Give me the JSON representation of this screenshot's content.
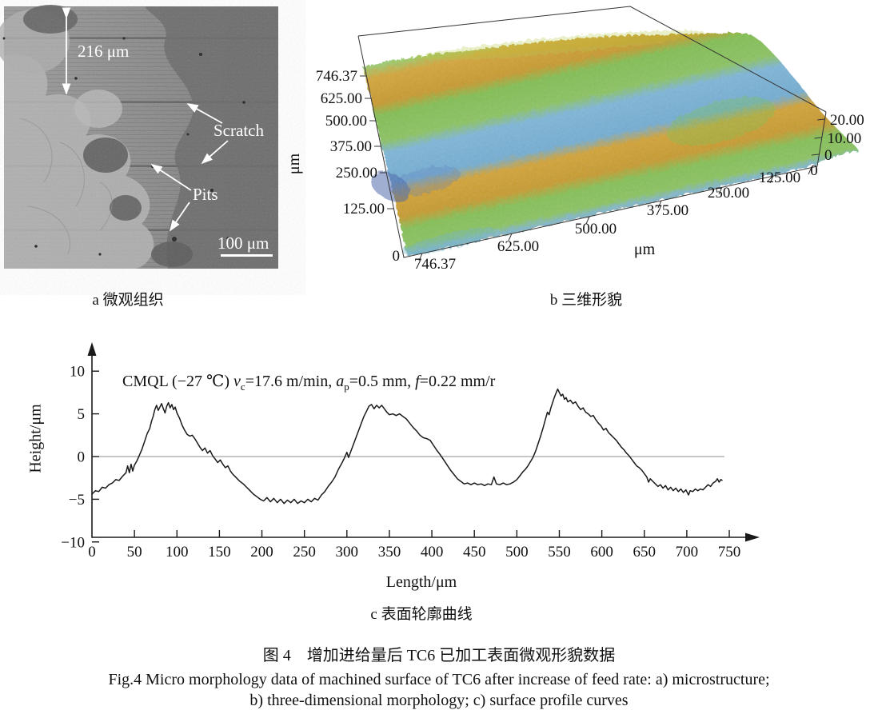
{
  "page": {
    "background": "#ffffff"
  },
  "figure": {
    "panel_a": {
      "caption": "a 微观组织",
      "thickness_label": "216 μm",
      "scratch_label": "Scratch",
      "pits_label": "Pits",
      "scalebar_label": "100 μm"
    },
    "panel_b": {
      "caption": "b 三维形貌",
      "length_axis_ticks": [
        "746.37",
        "625.00",
        "500.00",
        "375.00",
        "250.00",
        "125.00"
      ],
      "length_axis_origin": "0",
      "length_axis_unit": "μm",
      "width_axis_ticks": [
        "746.37",
        "625.00",
        "500.00",
        "375.00",
        "250.00",
        "125.00",
        "0"
      ],
      "width_axis_unit": "μm",
      "height_axis_ticks": [
        "20.00",
        "10.00",
        "0"
      ],
      "colors": {
        "blue": "#7db6d8",
        "green": "#83bf55",
        "orange": "#d2a338",
        "teal": "#8fc7d6",
        "navy": "#3f5da6"
      }
    },
    "panel_c": {
      "caption": "c 表面轮廓曲线",
      "annotation": {
        "prefix": "CMQL (−27 ℃) ",
        "v_sym": "v",
        "v_sub": "c",
        "v_rest": "=17.6 m/min, ",
        "a_sym": "a",
        "a_sub": "p",
        "a_rest": "=0.5 mm, ",
        "f_sym": "f",
        "f_rest": "=0.22 mm/r"
      }
    },
    "caption_zh": "图 4　增加进给量后 TC6 已加工表面微观形貌数据",
    "caption_en_line1": "Fig.4 Micro morphology data of machined surface of TC6 after increase of feed rate: a) microstructure;",
    "caption_en_line2": "b) three-dimensional morphology; c) surface profile curves"
  },
  "chart_data": {
    "type": "line",
    "title": "CMQL (−27 ℃) vc=17.6 m/min, ap=0.5 mm, f=0.22 mm/r",
    "xlabel": "Length/μm",
    "ylabel": "Height/μm",
    "xlim": [
      0,
      760
    ],
    "ylim": [
      -10,
      12
    ],
    "grid": "zero-line-only",
    "legend_position": "none",
    "xtick_values": [
      0,
      50,
      100,
      150,
      200,
      250,
      300,
      350,
      400,
      450,
      500,
      550,
      600,
      650,
      700,
      750
    ],
    "xtick_labels": [
      "0",
      "50",
      "100",
      "150",
      "200",
      "250",
      "300",
      "350",
      "400",
      "450",
      "500",
      "550",
      "600",
      "650",
      "700",
      "750"
    ],
    "ytick_values": [
      10,
      5,
      0,
      -5,
      -10
    ],
    "ytick_labels": [
      "10",
      "5",
      "0",
      "−5",
      "−10"
    ],
    "series": [
      {
        "name": "surface profile",
        "points": [
          [
            0,
            -4.4
          ],
          [
            4,
            -4.0
          ],
          [
            8,
            -4.1
          ],
          [
            12,
            -3.6
          ],
          [
            16,
            -3.7
          ],
          [
            20,
            -3.3
          ],
          [
            24,
            -3.1
          ],
          [
            28,
            -2.7
          ],
          [
            32,
            -2.8
          ],
          [
            36,
            -2.3
          ],
          [
            40,
            -1.9
          ],
          [
            42,
            -1.1
          ],
          [
            44,
            -1.9
          ],
          [
            46,
            -0.9
          ],
          [
            48,
            -1.7
          ],
          [
            50,
            -1.0
          ],
          [
            53,
            -0.5
          ],
          [
            56,
            0.2
          ],
          [
            59,
            0.9
          ],
          [
            62,
            1.8
          ],
          [
            65,
            2.7
          ],
          [
            68,
            3.3
          ],
          [
            70,
            4.1
          ],
          [
            72,
            4.7
          ],
          [
            74,
            5.5
          ],
          [
            76,
            6.0
          ],
          [
            78,
            5.4
          ],
          [
            80,
            5.8
          ],
          [
            82,
            6.2
          ],
          [
            84,
            5.6
          ],
          [
            86,
            5.1
          ],
          [
            88,
            5.9
          ],
          [
            90,
            6.3
          ],
          [
            92,
            5.7
          ],
          [
            94,
            6.1
          ],
          [
            96,
            5.5
          ],
          [
            98,
            5.8
          ],
          [
            100,
            5.1
          ],
          [
            103,
            4.5
          ],
          [
            106,
            3.7
          ],
          [
            109,
            3.1
          ],
          [
            112,
            2.6
          ],
          [
            115,
            2.4
          ],
          [
            118,
            2.5
          ],
          [
            121,
            2.1
          ],
          [
            124,
            1.6
          ],
          [
            127,
            1.1
          ],
          [
            130,
            0.7
          ],
          [
            133,
            1.0
          ],
          [
            136,
            0.4
          ],
          [
            139,
            0.7
          ],
          [
            142,
            0.1
          ],
          [
            145,
            -0.3
          ],
          [
            148,
            -0.7
          ],
          [
            151,
            -0.4
          ],
          [
            154,
            -0.9
          ],
          [
            157,
            -1.3
          ],
          [
            160,
            -1.1
          ],
          [
            163,
            -1.7
          ],
          [
            166,
            -2.1
          ],
          [
            170,
            -2.5
          ],
          [
            174,
            -2.9
          ],
          [
            178,
            -3.2
          ],
          [
            182,
            -3.6
          ],
          [
            186,
            -4.0
          ],
          [
            190,
            -4.4
          ],
          [
            194,
            -4.7
          ],
          [
            198,
            -5.0
          ],
          [
            202,
            -5.2
          ],
          [
            206,
            -4.8
          ],
          [
            210,
            -5.3
          ],
          [
            214,
            -4.9
          ],
          [
            218,
            -5.4
          ],
          [
            222,
            -5.0
          ],
          [
            226,
            -5.5
          ],
          [
            230,
            -5.1
          ],
          [
            234,
            -5.4
          ],
          [
            238,
            -5.0
          ],
          [
            242,
            -5.5
          ],
          [
            246,
            -5.2
          ],
          [
            250,
            -5.4
          ],
          [
            254,
            -5.0
          ],
          [
            258,
            -5.3
          ],
          [
            262,
            -4.9
          ],
          [
            266,
            -5.1
          ],
          [
            270,
            -4.5
          ],
          [
            274,
            -4.1
          ],
          [
            278,
            -3.5
          ],
          [
            282,
            -3.0
          ],
          [
            286,
            -2.4
          ],
          [
            290,
            -1.5
          ],
          [
            294,
            -0.8
          ],
          [
            297,
            -0.2
          ],
          [
            300,
            0.5
          ],
          [
            302,
            -0.1
          ],
          [
            305,
            0.7
          ],
          [
            308,
            1.5
          ],
          [
            311,
            2.3
          ],
          [
            314,
            3.1
          ],
          [
            317,
            3.9
          ],
          [
            320,
            4.7
          ],
          [
            323,
            5.3
          ],
          [
            326,
            5.9
          ],
          [
            329,
            6.1
          ],
          [
            332,
            5.6
          ],
          [
            335,
            6.0
          ],
          [
            338,
            5.7
          ],
          [
            341,
            6.0
          ],
          [
            344,
            5.6
          ],
          [
            347,
            5.2
          ],
          [
            350,
            4.9
          ],
          [
            354,
            5.0
          ],
          [
            358,
            4.8
          ],
          [
            362,
            5.0
          ],
          [
            366,
            4.7
          ],
          [
            370,
            4.4
          ],
          [
            374,
            3.9
          ],
          [
            378,
            3.4
          ],
          [
            382,
            3.0
          ],
          [
            386,
            2.5
          ],
          [
            390,
            2.2
          ],
          [
            394,
            2.1
          ],
          [
            398,
            1.9
          ],
          [
            402,
            1.3
          ],
          [
            406,
            0.7
          ],
          [
            410,
            0.2
          ],
          [
            414,
            -0.4
          ],
          [
            418,
            -1.0
          ],
          [
            422,
            -1.6
          ],
          [
            426,
            -2.1
          ],
          [
            430,
            -2.6
          ],
          [
            434,
            -2.9
          ],
          [
            438,
            -3.2
          ],
          [
            442,
            -3.1
          ],
          [
            446,
            -3.3
          ],
          [
            450,
            -3.1
          ],
          [
            454,
            -3.3
          ],
          [
            458,
            -3.2
          ],
          [
            462,
            -3.4
          ],
          [
            466,
            -3.2
          ],
          [
            470,
            -3.3
          ],
          [
            473,
            -2.4
          ],
          [
            476,
            -3.2
          ],
          [
            480,
            -3.3
          ],
          [
            484,
            -3.1
          ],
          [
            488,
            -3.3
          ],
          [
            492,
            -3.2
          ],
          [
            496,
            -3.0
          ],
          [
            500,
            -2.7
          ],
          [
            504,
            -2.2
          ],
          [
            507,
            -1.8
          ],
          [
            510,
            -1.5
          ],
          [
            513,
            -1.1
          ],
          [
            516,
            -0.6
          ],
          [
            519,
            -0.1
          ],
          [
            522,
            0.6
          ],
          [
            525,
            1.5
          ],
          [
            528,
            2.4
          ],
          [
            531,
            3.4
          ],
          [
            534,
            4.5
          ],
          [
            536,
            5.2
          ],
          [
            538,
            4.9
          ],
          [
            540,
            5.7
          ],
          [
            542,
            6.3
          ],
          [
            544,
            6.9
          ],
          [
            546,
            7.4
          ],
          [
            548,
            7.9
          ],
          [
            550,
            7.5
          ],
          [
            552,
            7.1
          ],
          [
            554,
            7.3
          ],
          [
            556,
            6.7
          ],
          [
            558,
            6.9
          ],
          [
            560,
            6.4
          ],
          [
            563,
            6.6
          ],
          [
            566,
            6.2
          ],
          [
            569,
            6.4
          ],
          [
            572,
            5.9
          ],
          [
            575,
            5.5
          ],
          [
            578,
            5.7
          ],
          [
            581,
            5.2
          ],
          [
            584,
            5.0
          ],
          [
            587,
            4.7
          ],
          [
            590,
            4.8
          ],
          [
            593,
            4.3
          ],
          [
            596,
            3.9
          ],
          [
            599,
            3.6
          ],
          [
            602,
            3.1
          ],
          [
            605,
            3.3
          ],
          [
            608,
            2.8
          ],
          [
            611,
            2.5
          ],
          [
            614,
            2.2
          ],
          [
            617,
            1.9
          ],
          [
            620,
            1.5
          ],
          [
            623,
            1.1
          ],
          [
            626,
            0.8
          ],
          [
            629,
            0.4
          ],
          [
            632,
            0.1
          ],
          [
            635,
            -0.3
          ],
          [
            638,
            -0.7
          ],
          [
            641,
            -1.1
          ],
          [
            644,
            -1.3
          ],
          [
            647,
            -1.6
          ],
          [
            650,
            -2.0
          ],
          [
            653,
            -2.4
          ],
          [
            655,
            -3.0
          ],
          [
            657,
            -2.6
          ],
          [
            660,
            -2.9
          ],
          [
            663,
            -3.2
          ],
          [
            666,
            -3.5
          ],
          [
            669,
            -3.3
          ],
          [
            672,
            -3.7
          ],
          [
            675,
            -3.4
          ],
          [
            678,
            -3.9
          ],
          [
            681,
            -3.6
          ],
          [
            684,
            -4.0
          ],
          [
            687,
            -3.7
          ],
          [
            690,
            -4.1
          ],
          [
            693,
            -3.8
          ],
          [
            696,
            -4.2
          ],
          [
            699,
            -3.9
          ],
          [
            702,
            -4.5
          ],
          [
            704,
            -4.0
          ],
          [
            707,
            -4.1
          ],
          [
            710,
            -3.8
          ],
          [
            713,
            -4.0
          ],
          [
            716,
            -3.8
          ],
          [
            719,
            -3.9
          ],
          [
            722,
            -3.6
          ],
          [
            725,
            -3.3
          ],
          [
            728,
            -3.5
          ],
          [
            731,
            -3.1
          ],
          [
            734,
            -2.9
          ],
          [
            736,
            -2.6
          ],
          [
            738,
            -3.0
          ],
          [
            740,
            -2.7
          ],
          [
            742,
            -2.8
          ]
        ]
      }
    ]
  }
}
